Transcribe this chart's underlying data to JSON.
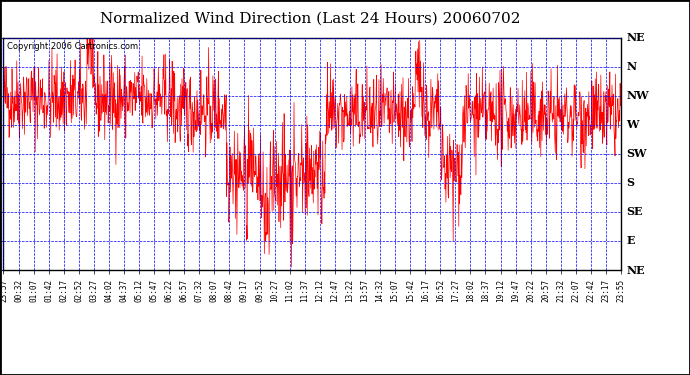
{
  "title": "Normalized Wind Direction (Last 24 Hours) 20060702",
  "copyright": "Copyright 2006 Cartronics.com",
  "bg_color": "#ffffff",
  "plot_bg_color": "#ffffff",
  "line_color": "#ff0000",
  "grid_color": "#0000ff",
  "border_color": "#000000",
  "ytick_labels": [
    "NE",
    "N",
    "NW",
    "W",
    "SW",
    "S",
    "SE",
    "E",
    "NE"
  ],
  "ytick_values": [
    8,
    7,
    6,
    5,
    4,
    3,
    2,
    1,
    0
  ],
  "xtick_labels": [
    "23:57",
    "00:32",
    "01:07",
    "01:42",
    "02:17",
    "02:52",
    "03:27",
    "04:02",
    "04:37",
    "05:12",
    "05:47",
    "06:22",
    "06:57",
    "07:32",
    "08:07",
    "08:42",
    "09:17",
    "09:52",
    "10:27",
    "11:02",
    "11:37",
    "12:12",
    "12:47",
    "13:22",
    "13:57",
    "14:32",
    "15:07",
    "15:42",
    "16:17",
    "16:52",
    "17:27",
    "18:02",
    "18:37",
    "19:12",
    "19:47",
    "20:22",
    "20:57",
    "21:32",
    "22:07",
    "22:42",
    "23:17",
    "23:55"
  ],
  "ymin": 0,
  "ymax": 8,
  "num_points": 1440
}
